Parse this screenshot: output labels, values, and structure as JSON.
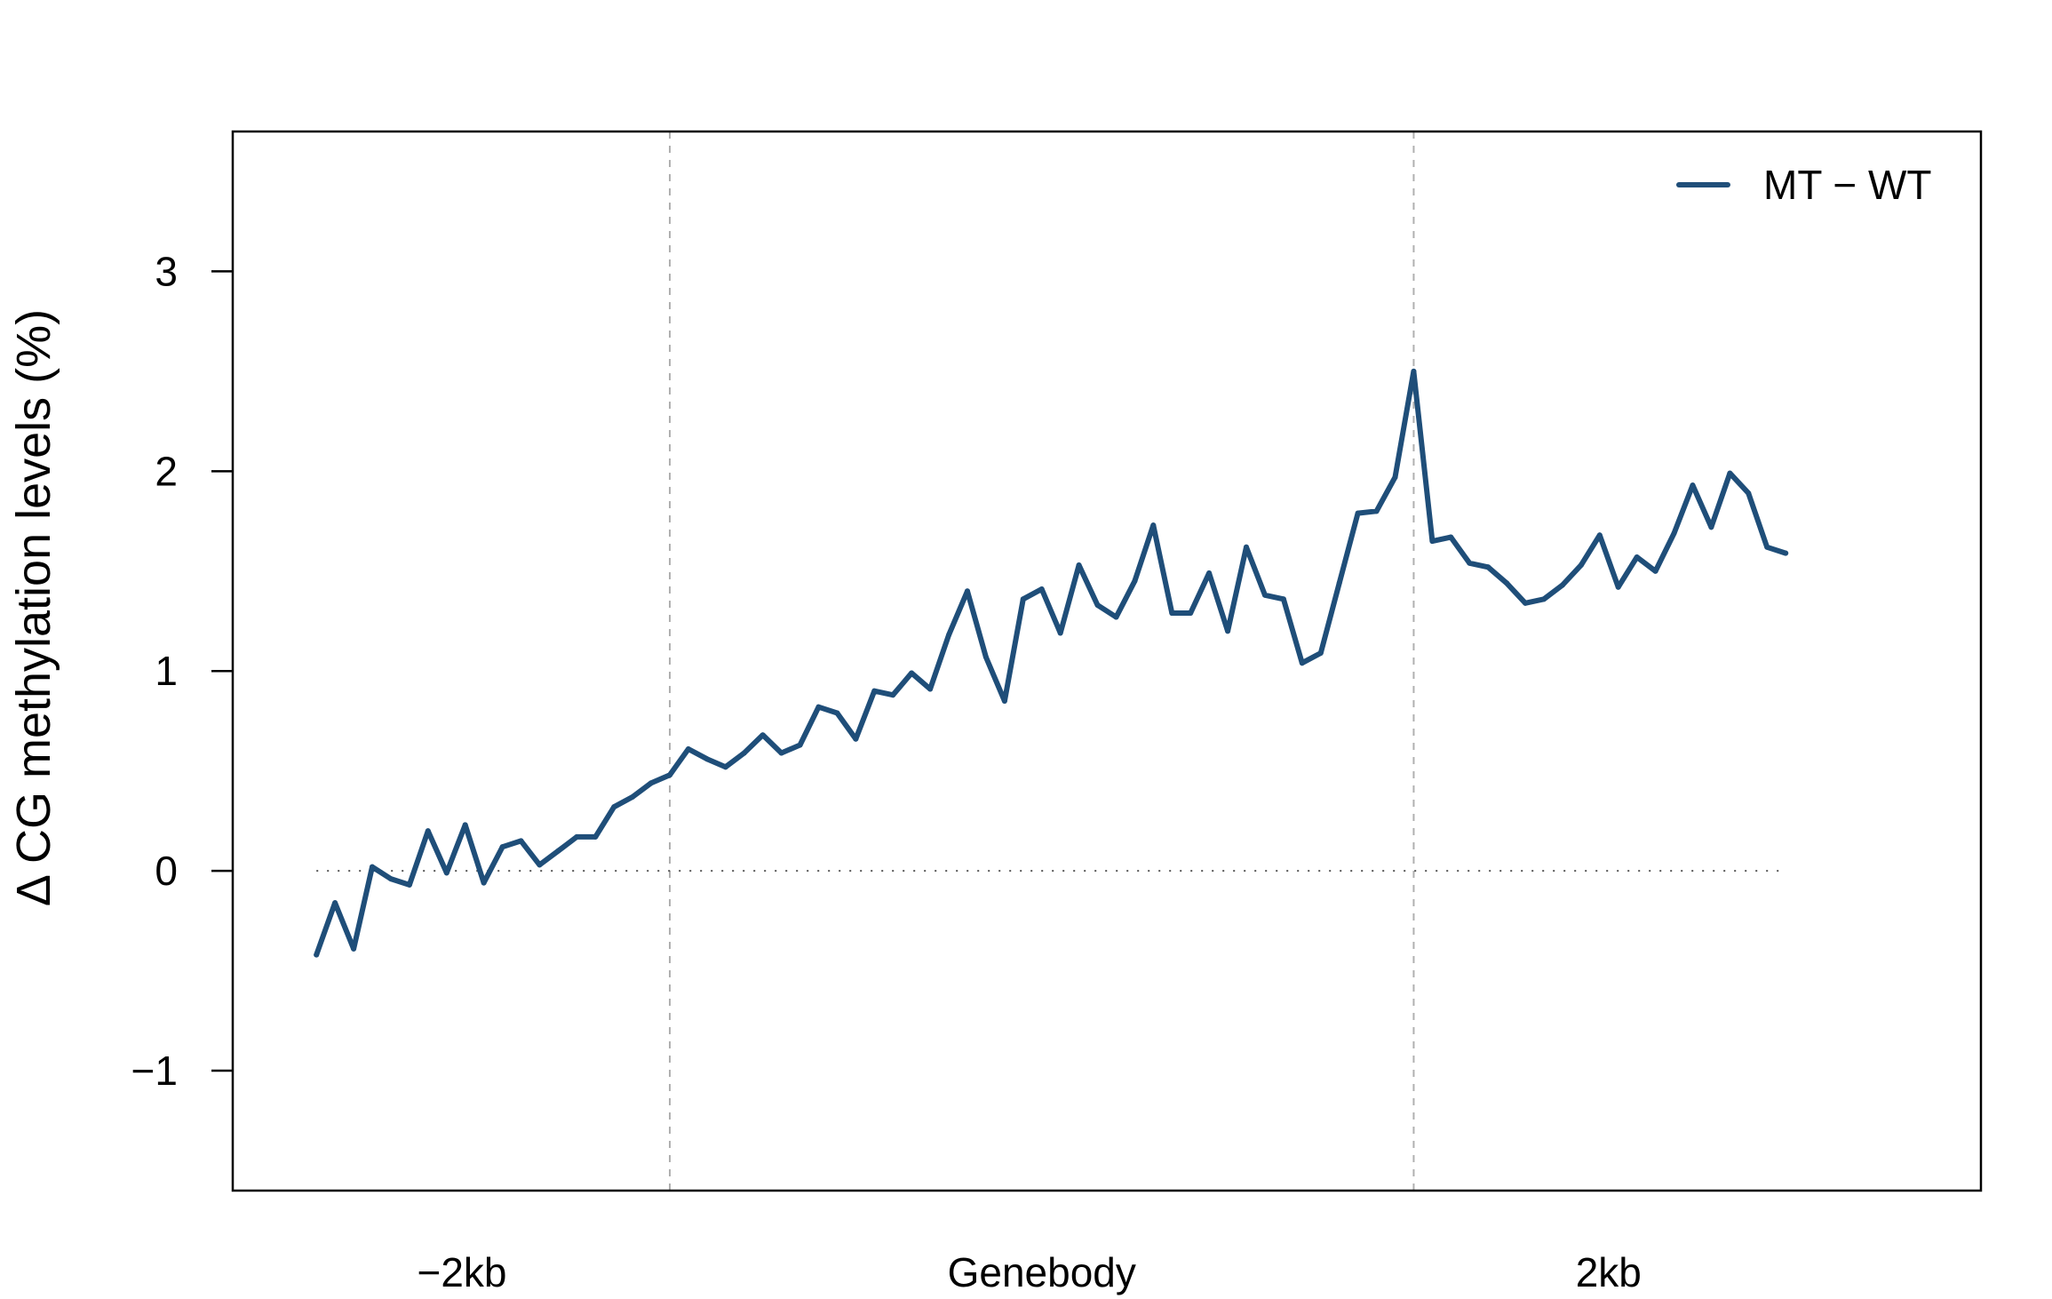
{
  "chart_data": {
    "type": "line",
    "title": "",
    "xlabel": "",
    "ylabel": "Δ CG methylation levels (%)",
    "x_tick_labels": [
      "−2kb",
      "Genebody",
      "2kb"
    ],
    "y_ticks": [
      -1,
      0,
      1,
      2,
      3
    ],
    "y_tick_labels": [
      "−1",
      "0",
      "1",
      "2",
      "3"
    ],
    "xlim": [
      -3.5,
      90.5
    ],
    "ylim": [
      -1.6,
      3.7
    ],
    "x_boundaries": [
      20,
      60
    ],
    "reference_line_y": 0,
    "grid": false,
    "legend_position": "top-right",
    "colors": {
      "series": "#1f4e79",
      "boundary": "#b0b0b0",
      "reference": "#555555"
    },
    "series": [
      {
        "name": "MT − WT",
        "x": [
          1,
          2,
          3,
          4,
          5,
          6,
          7,
          8,
          9,
          10,
          11,
          12,
          13,
          14,
          15,
          16,
          17,
          18,
          19,
          20,
          21,
          22,
          23,
          24,
          25,
          26,
          27,
          28,
          29,
          30,
          31,
          32,
          33,
          34,
          35,
          36,
          37,
          38,
          39,
          40,
          41,
          42,
          43,
          44,
          45,
          46,
          47,
          48,
          49,
          50,
          51,
          52,
          53,
          54,
          55,
          56,
          57,
          58,
          59,
          60,
          61,
          62,
          63,
          64,
          65,
          66,
          67,
          68,
          69,
          70,
          71,
          72,
          73,
          74,
          75,
          76,
          77,
          78,
          79,
          80
        ],
        "values": [
          -0.42,
          -0.16,
          -0.39,
          0.02,
          -0.04,
          -0.07,
          0.2,
          -0.01,
          0.23,
          -0.06,
          0.12,
          0.15,
          0.03,
          0.1,
          0.17,
          0.17,
          0.32,
          0.37,
          0.44,
          0.48,
          0.61,
          0.56,
          0.52,
          0.59,
          0.68,
          0.59,
          0.63,
          0.82,
          0.79,
          0.66,
          0.9,
          0.88,
          0.99,
          0.91,
          1.18,
          1.4,
          1.07,
          0.85,
          1.36,
          1.41,
          1.19,
          1.53,
          1.33,
          1.27,
          1.45,
          1.73,
          1.29,
          1.29,
          1.49,
          1.2,
          1.62,
          1.38,
          1.36,
          1.04,
          1.09,
          1.44,
          1.79,
          1.8,
          1.97,
          2.5,
          1.65,
          1.67,
          1.54,
          1.52,
          1.44,
          1.34,
          1.36,
          1.43,
          1.53,
          1.68,
          1.42,
          1.57,
          1.5,
          1.69,
          1.93,
          1.72,
          1.99,
          1.89,
          1.62,
          1.59
        ]
      }
    ]
  }
}
